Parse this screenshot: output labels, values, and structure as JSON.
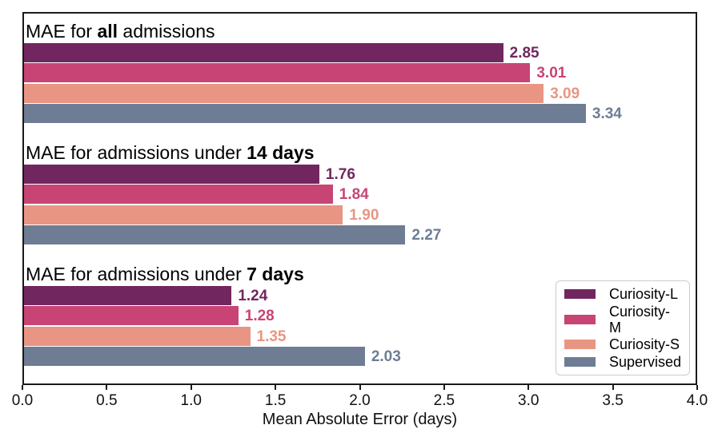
{
  "chart_data": {
    "type": "bar",
    "orientation": "horizontal",
    "title": "",
    "xlabel": "Mean Absolute Error (days)",
    "ylabel": "",
    "xlim": [
      0,
      4.0
    ],
    "xticks": [
      "0.0",
      "0.5",
      "1.0",
      "1.5",
      "2.0",
      "2.5",
      "3.0",
      "3.5",
      "4.0"
    ],
    "grid": false,
    "legend_position": "lower right",
    "frame_color": "#1a1a1a",
    "series": [
      {
        "name": "Curiosity-L",
        "color": "#72265f"
      },
      {
        "name": "Curiosity-M",
        "color": "#c84475"
      },
      {
        "name": "Curiosity-S",
        "color": "#e99583"
      },
      {
        "name": "Supervised",
        "color": "#6e7d94"
      }
    ],
    "groups": [
      {
        "title_parts": {
          "pre": "MAE for ",
          "bold": "all",
          "post": " admissions"
        },
        "values": [
          2.85,
          3.01,
          3.09,
          3.34
        ],
        "value_labels": [
          "2.85",
          "3.01",
          "3.09",
          "3.34"
        ]
      },
      {
        "title_parts": {
          "pre": "MAE for admissions under ",
          "bold": "14 days",
          "post": ""
        },
        "values": [
          1.76,
          1.84,
          1.9,
          2.27
        ],
        "value_labels": [
          "1.76",
          "1.84",
          "1.90",
          "2.27"
        ]
      },
      {
        "title_parts": {
          "pre": "MAE for admissions under ",
          "bold": "7 days",
          "post": ""
        },
        "values": [
          1.24,
          1.28,
          1.35,
          2.03
        ],
        "value_labels": [
          "1.24",
          "1.28",
          "1.35",
          "2.03"
        ]
      }
    ]
  }
}
